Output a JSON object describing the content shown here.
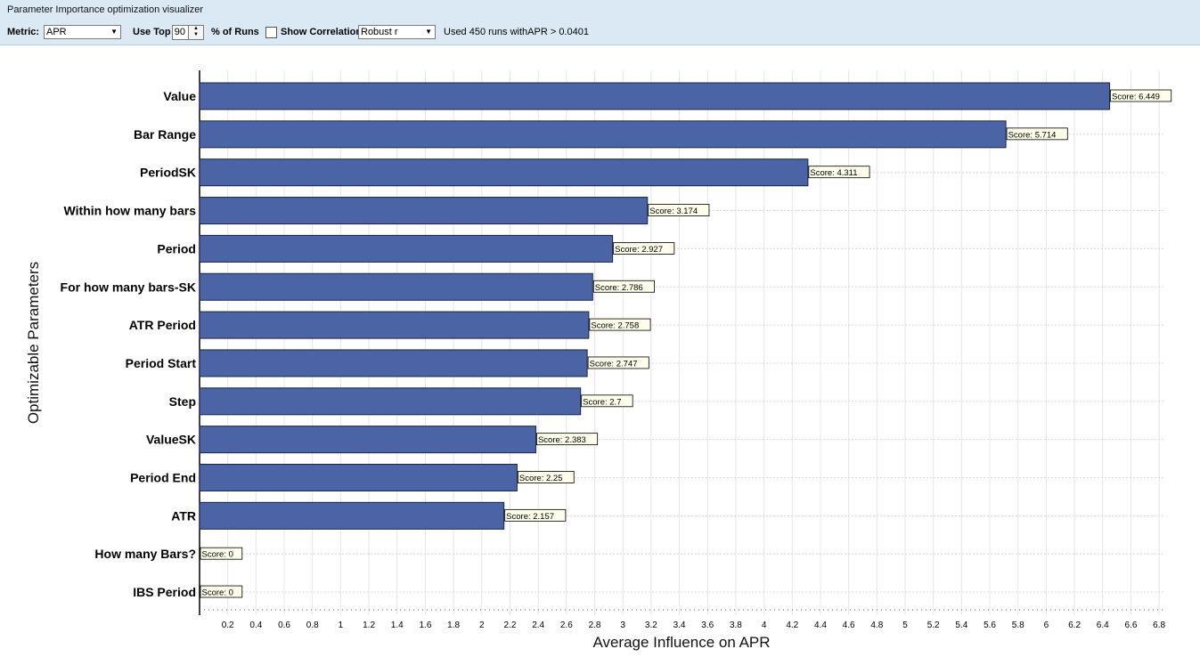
{
  "window": {
    "title": "Parameter Importance optimization visualizer"
  },
  "toolbar": {
    "metric_label": "Metric:",
    "metric_value": "APR",
    "use_top_label": "Use Top",
    "use_top_value": "90",
    "percent_label": "% of Runs",
    "show_correlation_label": "Show Correlation",
    "show_correlation_checked": false,
    "correlation_method": "Robust r",
    "status_text": "Used 450 runs withAPR > 0.0401"
  },
  "colors": {
    "bar": "#4a64a5",
    "bar_border": "#1c2540",
    "label_bg": "#fdfde9",
    "toolbar_bg": "#dbe9f5"
  },
  "chart_data": {
    "type": "bar",
    "orientation": "horizontal",
    "title": "",
    "xlabel": "Average Influence on APR",
    "ylabel": "Optimizable Parameters",
    "xlim": [
      0,
      6.8
    ],
    "x_ticks": [
      "0.2",
      "0.4",
      "0.6",
      "0.8",
      "1",
      "1.2",
      "1.4",
      "1.6",
      "1.8",
      "2",
      "2.2",
      "2.4",
      "2.6",
      "2.8",
      "3",
      "3.2",
      "3.4",
      "3.6",
      "3.8",
      "4",
      "4.2",
      "4.4",
      "4.6",
      "4.8",
      "5",
      "5.2",
      "5.4",
      "5.6",
      "5.8",
      "6",
      "6.2",
      "6.4",
      "6.6",
      "6.8"
    ],
    "grid": true,
    "categories": [
      "Value",
      "Bar Range",
      "PeriodSK",
      "Within how many bars",
      "Period",
      "For how many bars-SK",
      "ATR Period",
      "Period Start",
      "Step",
      "ValueSK",
      "Period End",
      "ATR",
      "How many Bars?",
      "IBS Period"
    ],
    "values": [
      6.449,
      5.714,
      4.311,
      3.174,
      2.927,
      2.786,
      2.758,
      2.747,
      2.7,
      2.383,
      2.25,
      2.157,
      0,
      0
    ],
    "data_labels": [
      "Score: 6.449",
      "Score: 5.714",
      "Score: 4.311",
      "Score: 3.174",
      "Score: 2.927",
      "Score: 2.786",
      "Score: 2.758",
      "Score: 2.747",
      "Score: 2.7",
      "Score: 2.383",
      "Score: 2.25",
      "Score: 2.157",
      "Score: 0",
      "Score: 0"
    ]
  }
}
